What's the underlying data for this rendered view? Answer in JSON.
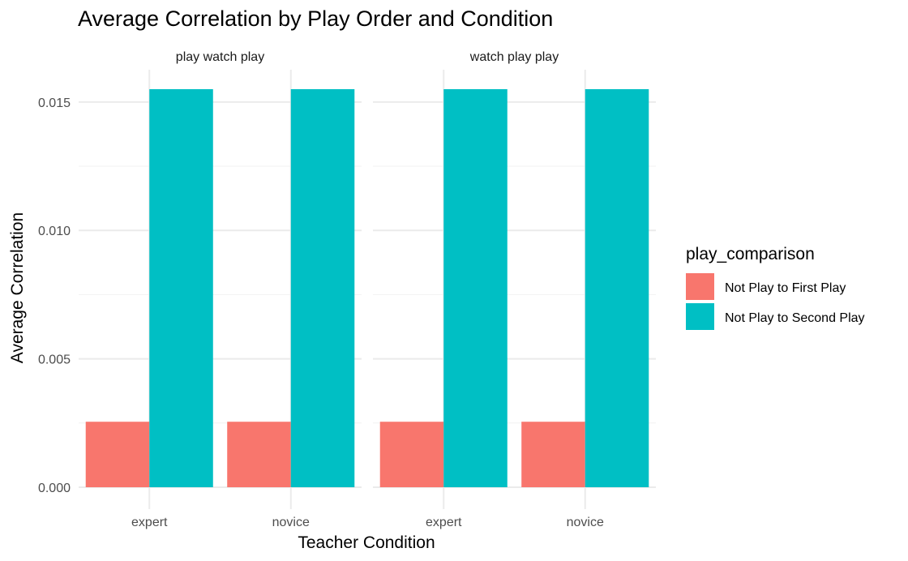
{
  "chart_data": {
    "type": "bar",
    "title": "Average Correlation by Play Order and Condition",
    "xlabel": "Teacher Condition",
    "ylabel": "Average Correlation",
    "ylim": [
      0,
      0.0155
    ],
    "yticks": [
      "0.000",
      "0.005",
      "0.010",
      "0.015"
    ],
    "grid": true,
    "legend_position": "right",
    "legend_title": "play_comparison",
    "categories": [
      "expert",
      "novice"
    ],
    "facets": [
      {
        "label": "play watch play",
        "series": [
          {
            "name": "Not Play to First Play",
            "color": "#F8766D",
            "values": [
              0.00255,
              0.00255
            ]
          },
          {
            "name": "Not Play to Second Play",
            "color": "#00BFC4",
            "values": [
              0.0155,
              0.0155
            ]
          }
        ]
      },
      {
        "label": "watch play play",
        "series": [
          {
            "name": "Not Play to First Play",
            "color": "#F8766D",
            "values": [
              0.00255,
              0.00255
            ]
          },
          {
            "name": "Not Play to Second Play",
            "color": "#00BFC4",
            "values": [
              0.0155,
              0.0155
            ]
          }
        ]
      }
    ]
  }
}
